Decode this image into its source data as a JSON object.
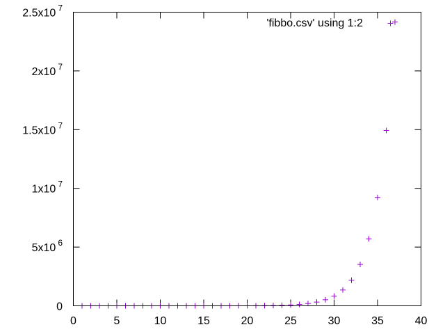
{
  "chart_data": {
    "type": "scatter",
    "title": "",
    "xlabel": "",
    "ylabel": "",
    "xlim": [
      0,
      40
    ],
    "ylim": [
      0,
      25000000
    ],
    "grid": false,
    "legend_position": "top-right",
    "x_ticks": [
      {
        "value": 0,
        "label": "0"
      },
      {
        "value": 5,
        "label": "5"
      },
      {
        "value": 10,
        "label": "10"
      },
      {
        "value": 15,
        "label": "15"
      },
      {
        "value": 20,
        "label": "20"
      },
      {
        "value": 25,
        "label": "25"
      },
      {
        "value": 30,
        "label": "30"
      },
      {
        "value": 35,
        "label": "35"
      },
      {
        "value": 40,
        "label": "40"
      }
    ],
    "y_ticks": [
      {
        "value": 0,
        "mantissa": "0",
        "exponent": ""
      },
      {
        "value": 5000000,
        "mantissa": "5x10",
        "exponent": "6"
      },
      {
        "value": 10000000,
        "mantissa": "1x10",
        "exponent": "7"
      },
      {
        "value": 15000000,
        "mantissa": "1.5x10",
        "exponent": "7"
      },
      {
        "value": 20000000,
        "mantissa": "2x10",
        "exponent": "7"
      },
      {
        "value": 25000000,
        "mantissa": "2.5x10",
        "exponent": "7"
      }
    ],
    "series": [
      {
        "name": "'fibbo.csv' using 1:2",
        "color": "#9400d3",
        "marker": "plus",
        "points": [
          [
            1,
            1
          ],
          [
            2,
            1
          ],
          [
            3,
            2
          ],
          [
            4,
            3
          ],
          [
            5,
            5
          ],
          [
            6,
            8
          ],
          [
            7,
            13
          ],
          [
            8,
            21
          ],
          [
            9,
            34
          ],
          [
            10,
            55
          ],
          [
            11,
            89
          ],
          [
            12,
            144
          ],
          [
            13,
            233
          ],
          [
            14,
            377
          ],
          [
            15,
            610
          ],
          [
            16,
            987
          ],
          [
            17,
            1597
          ],
          [
            18,
            2584
          ],
          [
            19,
            4181
          ],
          [
            20,
            6765
          ],
          [
            21,
            10946
          ],
          [
            22,
            17711
          ],
          [
            23,
            28657
          ],
          [
            24,
            46368
          ],
          [
            25,
            75025
          ],
          [
            26,
            121393
          ],
          [
            27,
            196418
          ],
          [
            28,
            317811
          ],
          [
            29,
            514229
          ],
          [
            30,
            832040
          ],
          [
            31,
            1346269
          ],
          [
            32,
            2178309
          ],
          [
            33,
            3524578
          ],
          [
            34,
            5702887
          ],
          [
            35,
            9227465
          ],
          [
            36,
            14930352
          ],
          [
            37,
            24157817
          ]
        ]
      }
    ]
  }
}
